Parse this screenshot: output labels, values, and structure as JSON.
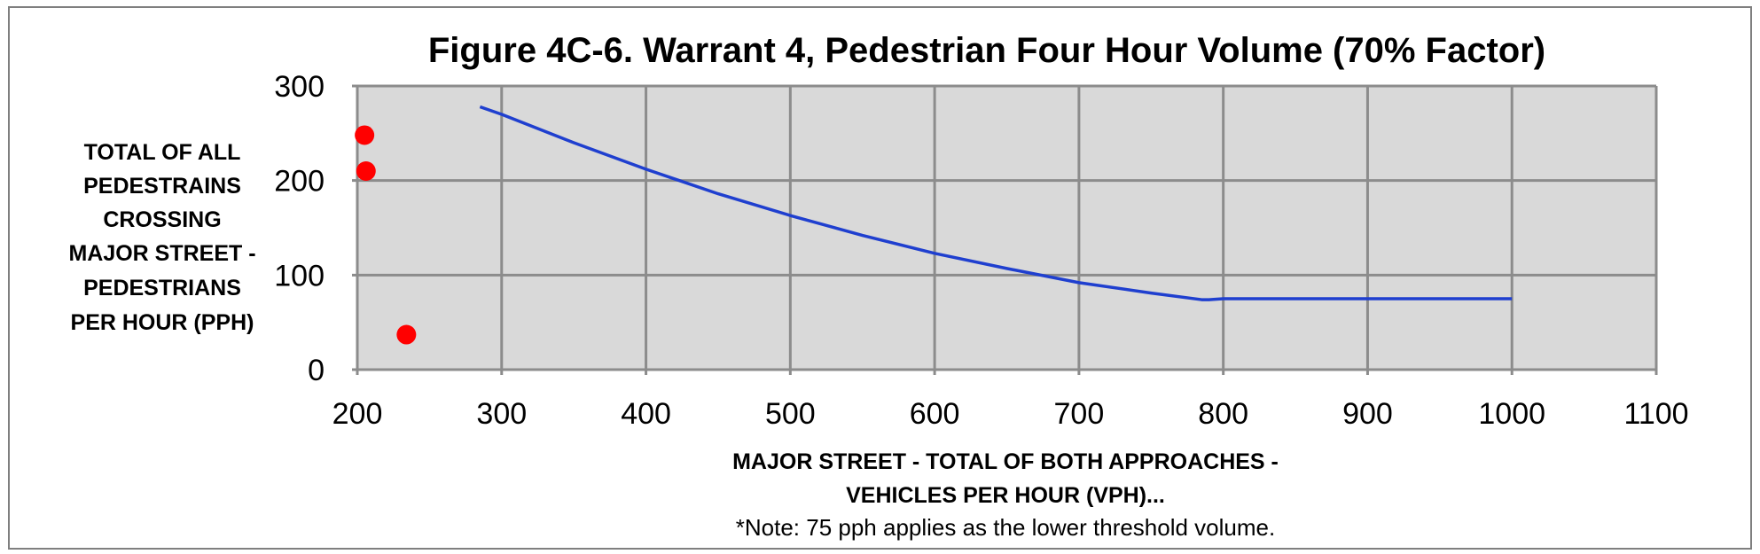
{
  "chart_data": {
    "type": "scatter",
    "title": "Figure 4C-6. Warrant 4, Pedestrian Four Hour Volume (70% Factor)",
    "ylabel_lines": [
      "TOTAL OF ALL",
      "PEDESTRAINS",
      "CROSSING",
      "MAJOR STREET -",
      "PEDESTRIANS",
      "PER HOUR (PPH)"
    ],
    "xlabel_lines": [
      "MAJOR STREET - TOTAL OF BOTH APPROACHES -",
      "VEHICLES PER HOUR (VPH)..."
    ],
    "note": "*Note: 75 pph applies as the lower threshold volume.",
    "xlim": [
      200,
      1100
    ],
    "ylim": [
      0,
      300
    ],
    "x_ticks": [
      200,
      300,
      400,
      500,
      600,
      700,
      800,
      900,
      1000,
      1100
    ],
    "y_ticks": [
      0,
      100,
      200,
      300
    ],
    "grid": true,
    "colors": {
      "plot_bg": "#d9d9d9",
      "grid": "#8c8c8c",
      "curve": "#1f3fcf",
      "points": "#ff0000",
      "frame": "#7f7f7f"
    },
    "series": [
      {
        "kind": "line",
        "x": [
          285,
          300,
          350,
          400,
          450,
          500,
          550,
          600,
          650,
          700,
          750,
          785,
          790,
          800,
          850,
          900,
          950,
          1000
        ],
        "y": [
          278,
          270,
          240,
          212,
          186,
          163,
          142,
          123,
          107,
          92,
          81,
          74,
          74,
          75,
          75,
          75,
          75,
          75
        ]
      },
      {
        "kind": "scatter",
        "x": [
          205,
          206,
          234
        ],
        "y": [
          248,
          210,
          37
        ]
      }
    ]
  }
}
